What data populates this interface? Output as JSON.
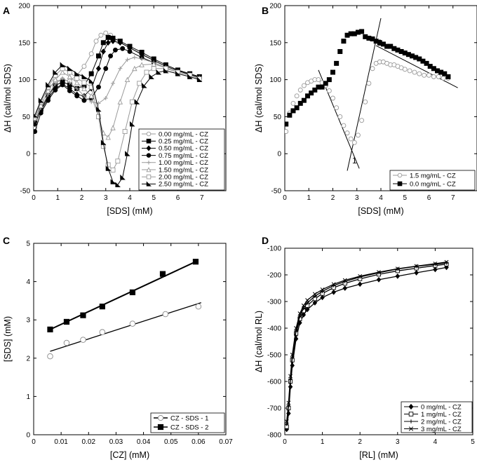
{
  "chart_data": [
    {
      "id": "A",
      "type": "line",
      "panel_label": "A",
      "xlabel": "[SDS] (mM)",
      "ylabel": "ΔH (cal/mol SDS)",
      "xlim": [
        0,
        8
      ],
      "ylim": [
        -50,
        200
      ],
      "xticks": [
        0,
        1,
        2,
        3,
        4,
        5,
        6,
        7
      ],
      "yticks": [
        -50,
        0,
        50,
        100,
        150,
        200
      ],
      "legend_position": "bottom-right",
      "series": [
        {
          "name": "0.00 mg/mL - CZ",
          "marker": "circle-open",
          "color": "#999999",
          "x": [
            0.05,
            0.3,
            0.6,
            0.9,
            1.2,
            1.5,
            1.8,
            2.1,
            2.4,
            2.6,
            2.8,
            3.0,
            3.2,
            3.5,
            4.0,
            4.5,
            5.0,
            5.5,
            6.0,
            6.5,
            6.9
          ],
          "y": [
            35,
            70,
            88,
            98,
            100,
            98,
            106,
            118,
            135,
            152,
            160,
            163,
            160,
            152,
            143,
            135,
            126,
            118,
            112,
            107,
            103
          ]
        },
        {
          "name": "0.25 mg/mL - CZ",
          "marker": "square-filled",
          "color": "#000000",
          "x": [
            0.05,
            0.3,
            0.6,
            0.9,
            1.2,
            1.5,
            1.8,
            2.1,
            2.4,
            2.7,
            2.9,
            3.1,
            3.3,
            3.6,
            4.0,
            4.5,
            5.0,
            5.5,
            6.0,
            6.5,
            6.9
          ],
          "y": [
            45,
            60,
            78,
            92,
            97,
            93,
            88,
            92,
            108,
            132,
            150,
            157,
            156,
            152,
            145,
            137,
            128,
            120,
            113,
            108,
            104
          ]
        },
        {
          "name": "0.50 mg/mL - CZ",
          "marker": "diamond-filled",
          "color": "#000000",
          "x": [
            0.05,
            0.3,
            0.6,
            0.9,
            1.2,
            1.5,
            1.8,
            2.1,
            2.4,
            2.7,
            2.9,
            3.1,
            3.3,
            3.6,
            4.0,
            4.5,
            5.0,
            5.5,
            6.0,
            6.5,
            6.9
          ],
          "y": [
            40,
            58,
            75,
            88,
            94,
            88,
            80,
            78,
            88,
            115,
            138,
            150,
            152,
            150,
            143,
            134,
            126,
            118,
            112,
            107,
            103
          ]
        },
        {
          "name": "0.75 mg/mL - CZ",
          "marker": "circle-filled",
          "color": "#000000",
          "x": [
            0.05,
            0.3,
            0.6,
            0.9,
            1.2,
            1.5,
            1.8,
            2.1,
            2.4,
            2.7,
            3.0,
            3.2,
            3.4,
            3.7,
            4.0,
            4.5,
            5.0,
            5.5,
            6.0,
            6.5,
            6.9
          ],
          "y": [
            30,
            55,
            72,
            86,
            93,
            85,
            78,
            72,
            75,
            90,
            115,
            132,
            140,
            142,
            138,
            130,
            123,
            116,
            110,
            106,
            102
          ]
        },
        {
          "name": "1.00 mg/mL - CZ",
          "marker": "plus",
          "color": "#999999",
          "x": [
            0.05,
            0.3,
            0.6,
            0.9,
            1.2,
            1.5,
            1.8,
            2.1,
            2.4,
            2.7,
            3.0,
            3.3,
            3.6,
            3.9,
            4.2,
            4.5,
            5.0,
            5.5,
            6.0,
            6.5,
            6.9
          ],
          "y": [
            45,
            62,
            80,
            94,
            102,
            96,
            88,
            78,
            70,
            68,
            75,
            95,
            115,
            127,
            130,
            128,
            123,
            116,
            110,
            106,
            102
          ]
        },
        {
          "name": "1.50 mg/mL - CZ",
          "marker": "triangle-open",
          "color": "#999999",
          "x": [
            0.05,
            0.3,
            0.6,
            0.9,
            1.2,
            1.5,
            1.8,
            2.1,
            2.4,
            2.7,
            2.9,
            3.1,
            3.3,
            3.6,
            3.9,
            4.2,
            4.5,
            5.0,
            5.5,
            6.0,
            6.5,
            6.9
          ],
          "y": [
            48,
            65,
            85,
            100,
            110,
            104,
            96,
            88,
            78,
            50,
            28,
            22,
            35,
            70,
            100,
            115,
            120,
            121,
            116,
            110,
            106,
            102
          ]
        },
        {
          "name": "2.00 mg/mL - CZ",
          "marker": "square-open",
          "color": "#999999",
          "x": [
            0.05,
            0.3,
            0.6,
            0.9,
            1.2,
            1.5,
            1.8,
            2.1,
            2.4,
            2.7,
            2.9,
            3.1,
            3.3,
            3.5,
            3.8,
            4.1,
            4.4,
            4.7,
            5.0,
            5.5,
            6.0,
            6.5,
            6.9
          ],
          "y": [
            50,
            70,
            90,
            106,
            115,
            110,
            102,
            96,
            90,
            50,
            10,
            -15,
            -22,
            -10,
            30,
            70,
            95,
            110,
            115,
            115,
            110,
            106,
            101
          ]
        },
        {
          "name": "2.50 mg/mL - CZ",
          "marker": "triangle-half",
          "color": "#000000",
          "x": [
            0.05,
            0.3,
            0.6,
            0.9,
            1.2,
            1.5,
            1.8,
            2.1,
            2.4,
            2.7,
            2.9,
            3.1,
            3.3,
            3.5,
            3.7,
            3.9,
            4.1,
            4.3,
            4.6,
            4.9,
            5.2,
            5.5,
            6.0,
            6.5,
            6.9
          ],
          "y": [
            52,
            72,
            93,
            110,
            120,
            115,
            108,
            104,
            98,
            60,
            15,
            -20,
            -38,
            -42,
            -32,
            0,
            40,
            70,
            92,
            104,
            110,
            112,
            108,
            104,
            100
          ]
        }
      ]
    },
    {
      "id": "B",
      "type": "scatter",
      "panel_label": "B",
      "xlabel": "[SDS] (mM)",
      "ylabel": "ΔH (cal/mol SDS)",
      "xlim": [
        0,
        8
      ],
      "ylim": [
        -50,
        200
      ],
      "xticks": [
        0,
        1,
        2,
        3,
        4,
        5,
        6,
        7
      ],
      "yticks": [
        -50,
        0,
        50,
        100,
        150,
        200
      ],
      "legend_position": "bottom-right",
      "annotations": [
        "1",
        "2"
      ],
      "series": [
        {
          "name": "1.5 mg/mL - CZ",
          "marker": "circle-open",
          "color": "#999999",
          "x": [
            0.05,
            0.2,
            0.35,
            0.5,
            0.65,
            0.8,
            0.95,
            1.1,
            1.25,
            1.4,
            1.55,
            1.7,
            1.85,
            2.0,
            2.15,
            2.3,
            2.45,
            2.6,
            2.75,
            2.9,
            3.05,
            3.2,
            3.35,
            3.5,
            3.65,
            3.8,
            3.95,
            4.1,
            4.25,
            4.4,
            4.55,
            4.7,
            4.85,
            5.0,
            5.2,
            5.4,
            5.6,
            5.8,
            6.0,
            6.2,
            6.4,
            6.6,
            6.8
          ],
          "y": [
            30,
            55,
            68,
            78,
            86,
            92,
            96,
            98,
            100,
            100,
            96,
            92,
            85,
            75,
            62,
            50,
            38,
            28,
            20,
            15,
            25,
            45,
            70,
            95,
            115,
            122,
            124,
            124,
            122,
            120,
            120,
            118,
            116,
            114,
            112,
            110,
            108,
            106,
            106,
            104,
            104,
            102,
            102
          ]
        },
        {
          "name": "0.0 mg/mL - CZ",
          "marker": "square-filled",
          "color": "#000000",
          "x": [
            0.05,
            0.2,
            0.35,
            0.5,
            0.65,
            0.8,
            0.95,
            1.1,
            1.25,
            1.4,
            1.55,
            1.7,
            1.85,
            2.0,
            2.15,
            2.3,
            2.45,
            2.6,
            2.75,
            2.9,
            3.05,
            3.2,
            3.35,
            3.5,
            3.65,
            3.8,
            3.95,
            4.1,
            4.25,
            4.4,
            4.55,
            4.7,
            4.85,
            5.0,
            5.15,
            5.3,
            5.45,
            5.6,
            5.75,
            5.9,
            6.05,
            6.2,
            6.35,
            6.5,
            6.65,
            6.8
          ],
          "y": [
            40,
            52,
            58,
            62,
            68,
            72,
            78,
            82,
            86,
            90,
            90,
            95,
            100,
            110,
            122,
            138,
            152,
            160,
            162,
            162,
            164,
            165,
            158,
            156,
            155,
            152,
            150,
            148,
            145,
            145,
            142,
            140,
            138,
            136,
            134,
            132,
            130,
            128,
            125,
            122,
            118,
            115,
            112,
            110,
            108,
            104
          ]
        }
      ],
      "fit_lines": [
        {
          "x": [
            1.4,
            3.1
          ],
          "y": [
            113,
            -20
          ]
        },
        {
          "x": [
            2.6,
            4.0
          ],
          "y": [
            -23,
            183
          ]
        },
        {
          "x": [
            3.8,
            7.2
          ],
          "y": [
            146,
            89
          ]
        }
      ]
    },
    {
      "id": "C",
      "type": "scatter",
      "panel_label": "C",
      "xlabel": "[CZ] (mM)",
      "ylabel": "[SDS] (mM)",
      "xlim": [
        0,
        0.07
      ],
      "ylim": [
        0,
        5
      ],
      "xticks": [
        0,
        0.01,
        0.02,
        0.03,
        0.04,
        0.05,
        0.06,
        0.07
      ],
      "yticks": [
        0,
        1,
        2,
        3,
        4,
        5
      ],
      "legend_position": "bottom-right",
      "series": [
        {
          "name": "CZ - SDS - 1",
          "marker": "circle-open",
          "x": [
            0.006,
            0.012,
            0.018,
            0.025,
            0.036,
            0.048,
            0.06
          ],
          "y": [
            2.05,
            2.4,
            2.48,
            2.68,
            2.9,
            3.15,
            3.35
          ],
          "fit": {
            "x": [
              0.006,
              0.061
            ],
            "y": [
              2.18,
              3.45
            ]
          }
        },
        {
          "name": "CZ - SDS - 2",
          "marker": "square-filled",
          "x": [
            0.006,
            0.012,
            0.018,
            0.025,
            0.036,
            0.047,
            0.059
          ],
          "y": [
            2.75,
            2.95,
            3.12,
            3.35,
            3.72,
            4.2,
            4.52
          ],
          "fit": {
            "x": [
              0.006,
              0.059
            ],
            "y": [
              2.75,
              4.52
            ]
          }
        }
      ]
    },
    {
      "id": "D",
      "type": "line",
      "panel_label": "D",
      "xlabel": "[RL] (mM)",
      "ylabel": "ΔH (cal/mol RL)",
      "xlim": [
        0,
        5
      ],
      "ylim": [
        -800,
        -100
      ],
      "xticks": [
        0,
        1,
        2,
        3,
        4,
        5
      ],
      "yticks": [
        -800,
        -700,
        -600,
        -500,
        -400,
        -300,
        -200,
        -100
      ],
      "legend_position": "bottom-right",
      "series": [
        {
          "name": "0 mg/mL - CZ",
          "marker": "diamond-filled",
          "x": [
            0.05,
            0.1,
            0.15,
            0.2,
            0.3,
            0.4,
            0.5,
            0.6,
            0.8,
            1.0,
            1.3,
            1.6,
            2.0,
            2.5,
            3.0,
            3.5,
            4.0,
            4.3
          ],
          "y": [
            -780,
            -720,
            -620,
            -540,
            -440,
            -380,
            -350,
            -330,
            -305,
            -285,
            -265,
            -250,
            -235,
            -218,
            -205,
            -192,
            -180,
            -172
          ]
        },
        {
          "name": "1 mg/mL - CZ",
          "marker": "square-open",
          "x": [
            0.05,
            0.1,
            0.15,
            0.2,
            0.3,
            0.4,
            0.5,
            0.6,
            0.8,
            1.0,
            1.3,
            1.6,
            2.0,
            2.5,
            3.0,
            3.5,
            4.0,
            4.3
          ],
          "y": [
            -770,
            -700,
            -600,
            -520,
            -420,
            -365,
            -335,
            -315,
            -290,
            -270,
            -248,
            -232,
            -215,
            -198,
            -185,
            -175,
            -165,
            -160
          ]
        },
        {
          "name": "2 mg/mL - CZ",
          "marker": "plus",
          "x": [
            0.05,
            0.1,
            0.15,
            0.2,
            0.3,
            0.4,
            0.5,
            0.6,
            0.8,
            1.0,
            1.3,
            1.6,
            2.0,
            2.5,
            3.0,
            3.5,
            4.0,
            4.3
          ],
          "y": [
            -760,
            -690,
            -590,
            -510,
            -410,
            -355,
            -325,
            -305,
            -280,
            -262,
            -240,
            -225,
            -208,
            -192,
            -178,
            -168,
            -160,
            -155
          ]
        },
        {
          "name": "3 mg/mL - CZ",
          "marker": "cross",
          "x": [
            0.05,
            0.1,
            0.15,
            0.2,
            0.3,
            0.4,
            0.5,
            0.6,
            0.8,
            1.0,
            1.3,
            1.6,
            2.0,
            2.5,
            3.0,
            3.5,
            4.0,
            4.3
          ],
          "y": [
            -750,
            -680,
            -580,
            -500,
            -400,
            -345,
            -315,
            -295,
            -272,
            -255,
            -235,
            -220,
            -205,
            -190,
            -177,
            -167,
            -158,
            -152
          ]
        }
      ]
    }
  ]
}
